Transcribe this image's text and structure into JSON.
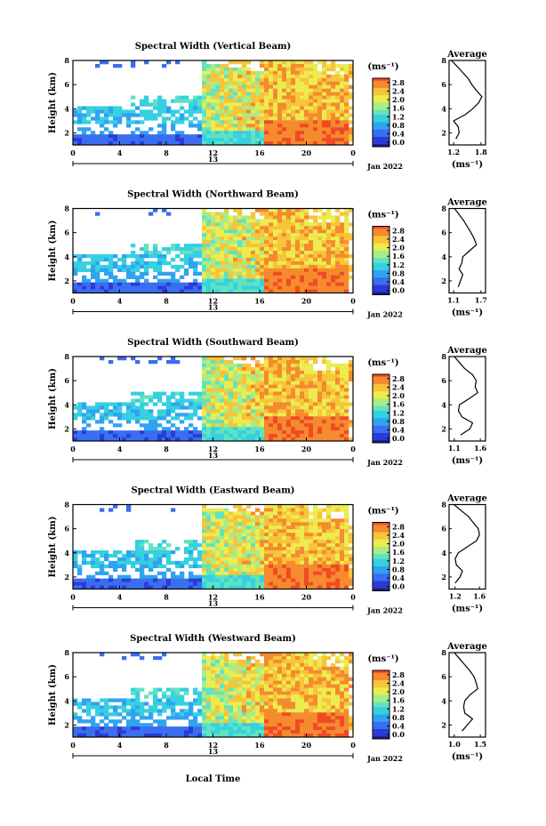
{
  "figure": {
    "xlabel": "Local Time",
    "date_label": "Jan 2022",
    "day_label": "13",
    "unit_label": "(ms⁻¹)",
    "colorbar_ticks": [
      "2.8",
      "2.4",
      "2.0",
      "1.6",
      "1.2",
      "0.8",
      "0.4",
      "0.0"
    ],
    "palette": [
      "#1a1a80",
      "#2a3bd6",
      "#3a6ef0",
      "#2fa3f0",
      "#36d0e0",
      "#5fe3c0",
      "#a8ec88",
      "#ecec50",
      "#f7c43a",
      "#f58a2e",
      "#f04a25"
    ]
  },
  "chart_data": [
    {
      "type": "heatmap",
      "title": "Spectral Width (Vertical Beam)",
      "ylabel": "Height (km)",
      "x_ticks": [
        "0",
        "4",
        "8",
        "12",
        "16",
        "20",
        "0"
      ],
      "y_ticks": [
        "8",
        "6",
        "4",
        "2"
      ],
      "xlim": [
        0,
        24
      ],
      "ylim": [
        1.0,
        8.0
      ],
      "zlim": [
        0.0,
        2.8
      ],
      "profile": {
        "title": "Average",
        "xlabel": "(ms⁻¹)",
        "x_ticks": [
          "1.2",
          "1.8"
        ],
        "xlim": [
          1.1,
          1.9
        ],
        "y_ticks": [
          "8",
          "6",
          "4",
          "2"
        ],
        "height": [
          1.5,
          2.0,
          2.5,
          3.0,
          3.5,
          4.0,
          4.5,
          5.0,
          5.5,
          6.0,
          6.5,
          7.0,
          7.5,
          8.0
        ],
        "width": [
          1.25,
          1.32,
          1.3,
          1.2,
          1.45,
          1.62,
          1.75,
          1.82,
          1.7,
          1.6,
          1.52,
          1.4,
          1.28,
          1.15
        ]
      }
    },
    {
      "type": "heatmap",
      "title": "Spectral Width (Northward Beam)",
      "ylabel": "Height (km)",
      "x_ticks": [
        "0",
        "4",
        "8",
        "12",
        "16",
        "20",
        "0"
      ],
      "y_ticks": [
        "8",
        "6",
        "4",
        "2"
      ],
      "xlim": [
        0,
        24
      ],
      "ylim": [
        1.0,
        8.0
      ],
      "zlim": [
        0.0,
        2.8
      ],
      "profile": {
        "title": "Average",
        "xlabel": "(ms⁻¹)",
        "x_ticks": [
          "1.1",
          "1.7"
        ],
        "xlim": [
          1.0,
          1.8
        ],
        "y_ticks": [
          "8",
          "6",
          "4",
          "2"
        ],
        "height": [
          1.5,
          2.0,
          2.5,
          3.0,
          3.5,
          4.0,
          4.5,
          5.0,
          5.5,
          6.0,
          6.5,
          7.0,
          7.5,
          8.0
        ],
        "width": [
          1.2,
          1.25,
          1.3,
          1.22,
          1.28,
          1.3,
          1.45,
          1.6,
          1.55,
          1.48,
          1.4,
          1.32,
          1.22,
          1.12
        ]
      }
    },
    {
      "type": "heatmap",
      "title": "Spectral Width (Southward Beam)",
      "ylabel": "Height (km)",
      "x_ticks": [
        "0",
        "4",
        "8",
        "12",
        "16",
        "20",
        "0"
      ],
      "y_ticks": [
        "8",
        "6",
        "4",
        "2"
      ],
      "xlim": [
        0,
        24
      ],
      "ylim": [
        1.0,
        8.0
      ],
      "zlim": [
        0.0,
        2.8
      ],
      "profile": {
        "title": "Average",
        "xlabel": "(ms⁻¹)",
        "x_ticks": [
          "1.1",
          "1.6"
        ],
        "xlim": [
          1.0,
          1.7
        ],
        "y_ticks": [
          "8",
          "6",
          "4",
          "2"
        ],
        "height": [
          1.5,
          2.0,
          2.5,
          3.0,
          3.5,
          4.0,
          4.5,
          5.0,
          5.5,
          6.0,
          6.5,
          7.0,
          7.5,
          8.0
        ],
        "width": [
          1.22,
          1.4,
          1.45,
          1.25,
          1.18,
          1.2,
          1.38,
          1.55,
          1.5,
          1.52,
          1.45,
          1.3,
          1.2,
          1.1
        ]
      }
    },
    {
      "type": "heatmap",
      "title": "Spectral Width (Eastward Beam)",
      "ylabel": "Height (km)",
      "x_ticks": [
        "0",
        "4",
        "8",
        "12",
        "16",
        "20",
        "0"
      ],
      "y_ticks": [
        "8",
        "6",
        "4",
        "2"
      ],
      "xlim": [
        0,
        24
      ],
      "ylim": [
        1.0,
        8.0
      ],
      "zlim": [
        0.0,
        2.8
      ],
      "profile": {
        "title": "Average",
        "xlabel": "(ms⁻¹)",
        "x_ticks": [
          "1.2",
          "1.6"
        ],
        "xlim": [
          1.1,
          1.7
        ],
        "y_ticks": [
          "8",
          "6",
          "4",
          "2"
        ],
        "height": [
          1.5,
          2.0,
          2.5,
          3.0,
          3.5,
          4.0,
          4.5,
          5.0,
          5.5,
          6.0,
          6.5,
          7.0,
          7.5,
          8.0
        ],
        "width": [
          1.2,
          1.28,
          1.32,
          1.22,
          1.2,
          1.25,
          1.4,
          1.55,
          1.6,
          1.58,
          1.5,
          1.42,
          1.3,
          1.18
        ]
      }
    },
    {
      "type": "heatmap",
      "title": "Spectral Width (Westward Beam)",
      "ylabel": "Height (km)",
      "x_ticks": [
        "0",
        "4",
        "8",
        "12",
        "16",
        "20",
        "0"
      ],
      "y_ticks": [
        "8",
        "6",
        "4",
        "2"
      ],
      "xlim": [
        0,
        24
      ],
      "ylim": [
        1.0,
        8.0
      ],
      "zlim": [
        0.0,
        2.8
      ],
      "profile": {
        "title": "Average",
        "xlabel": "(ms⁻¹)",
        "x_ticks": [
          "1.0",
          "1.5"
        ],
        "xlim": [
          0.9,
          1.6
        ],
        "y_ticks": [
          "8",
          "6",
          "4",
          "2"
        ],
        "height": [
          1.5,
          2.0,
          2.5,
          3.0,
          3.5,
          4.0,
          4.5,
          5.0,
          5.5,
          6.0,
          6.5,
          7.0,
          7.5,
          8.0
        ],
        "width": [
          1.15,
          1.25,
          1.35,
          1.2,
          1.18,
          1.2,
          1.3,
          1.45,
          1.42,
          1.38,
          1.3,
          1.2,
          1.1,
          1.0
        ]
      }
    }
  ]
}
